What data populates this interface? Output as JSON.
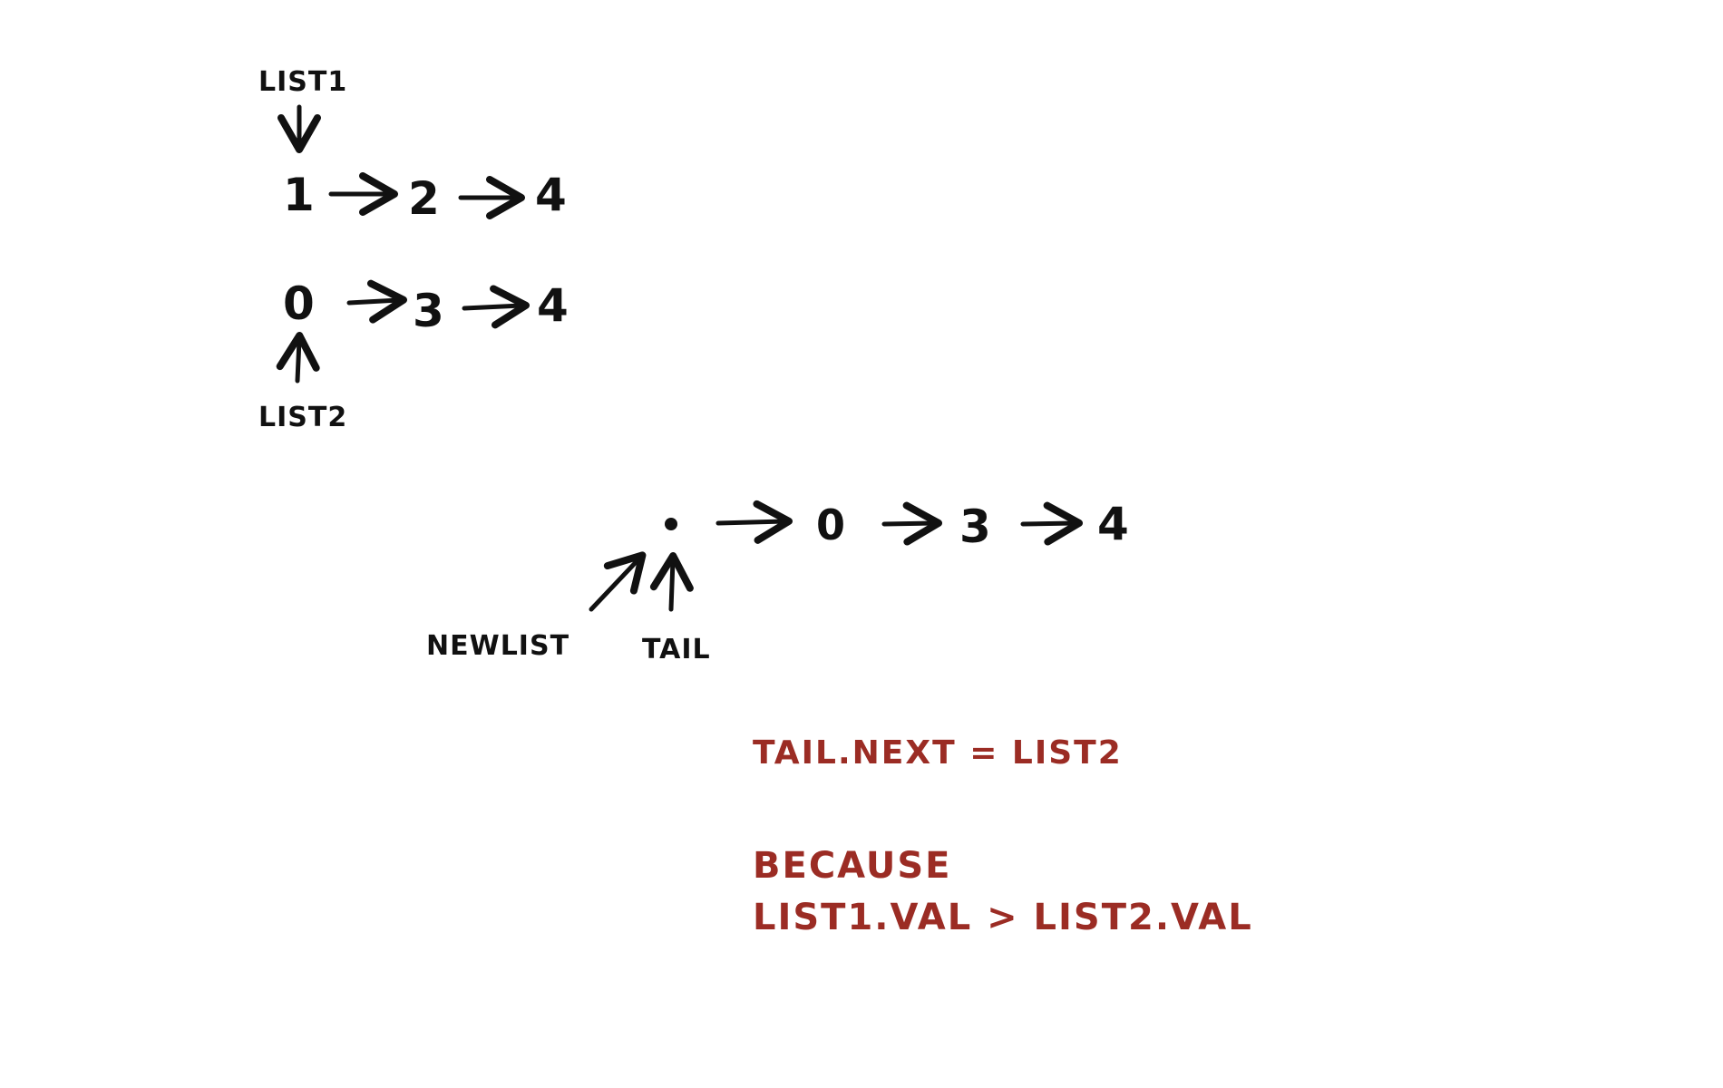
{
  "colors": {
    "ink": "#111111",
    "annotation": "#9b2c24",
    "background": "#ffffff"
  },
  "lists": {
    "list1_label": "LIST1",
    "list1_nodes": [
      "1",
      "2",
      "4"
    ],
    "list2_label": "LIST2",
    "list2_nodes": [
      "0",
      "3",
      "4"
    ]
  },
  "merged": {
    "nodes": [
      "0",
      "3",
      "4"
    ],
    "newlist_label": "NEWLIST",
    "tail_label": "TAIL"
  },
  "notes": {
    "assignment": "TAIL.NEXT = LIST2",
    "because": "BECAUSE",
    "condition": "LIST1.VAL > LIST2.VAL"
  }
}
